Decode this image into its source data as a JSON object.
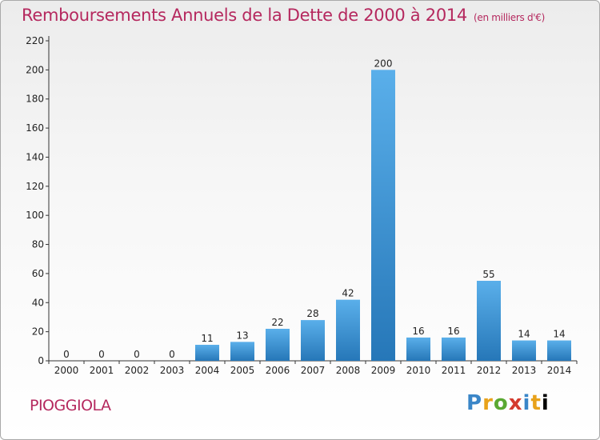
{
  "header": {
    "title": "Remboursements Annuels de la Dette de 2000 à 2014",
    "unit_note": "(en milliers d'€)"
  },
  "place": "PIOGGIOLA",
  "logo": {
    "letters": [
      "P",
      "r",
      "o",
      "x",
      "i",
      "t",
      "i"
    ],
    "text": "Proxiti"
  },
  "colors": {
    "title": "#b5285e",
    "bar_light": "#5aafea",
    "bar_dark": "#2677b8",
    "axis": "#333333"
  },
  "chart_data": {
    "type": "bar",
    "categories": [
      "2000",
      "2001",
      "2002",
      "2003",
      "2004",
      "2005",
      "2006",
      "2007",
      "2008",
      "2009",
      "2010",
      "2011",
      "2012",
      "2013",
      "2014"
    ],
    "values": [
      0,
      0,
      0,
      0,
      11,
      13,
      22,
      28,
      42,
      200,
      16,
      16,
      55,
      14,
      14
    ],
    "yticks": [
      0,
      20,
      40,
      60,
      80,
      100,
      120,
      140,
      160,
      180,
      200,
      220
    ],
    "ylim": [
      0,
      220
    ],
    "title": "Remboursements Annuels de la Dette de 2000 à 2014",
    "xlabel": "",
    "ylabel": "",
    "grid": false,
    "legend": "none"
  }
}
